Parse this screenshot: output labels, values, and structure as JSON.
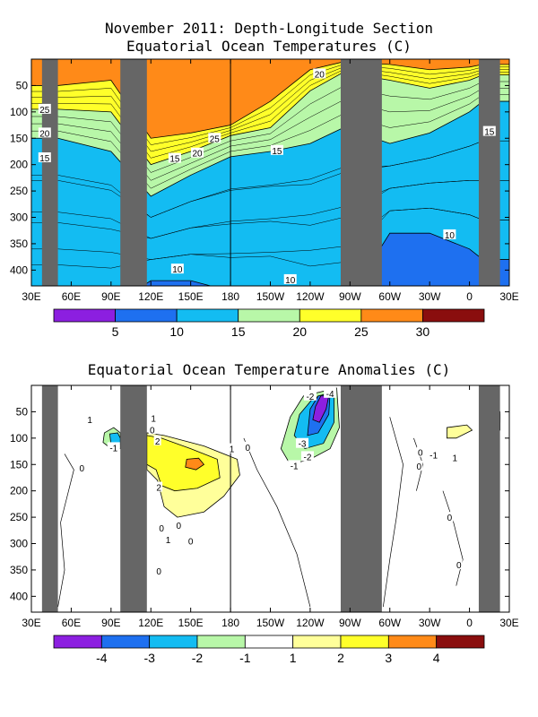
{
  "chart_data": [
    {
      "type": "heatmap",
      "title": "November 2011: Depth-Longitude Section",
      "subtitle": "Equatorial Ocean Temperatures (C)",
      "x_ticks": [
        "30E",
        "60E",
        "90E",
        "120E",
        "150E",
        "180",
        "150W",
        "120W",
        "90W",
        "60W",
        "30W",
        "0",
        "30E"
      ],
      "y_ticks": [
        "50",
        "100",
        "150",
        "200",
        "250",
        "300",
        "350",
        "400"
      ],
      "xlim_lon_east": [
        30,
        390
      ],
      "ylim_depth": [
        0,
        430
      ],
      "land_masks": [
        [
          38,
          50
        ],
        [
          97,
          117
        ],
        [
          263,
          294
        ],
        [
          367,
          383
        ]
      ],
      "colorbar": {
        "labels": [
          "5",
          "10",
          "15",
          "20",
          "25",
          "30"
        ],
        "colors": [
          "#8c1fe0",
          "#1e70f0",
          "#13bcf2",
          "#b8f7a8",
          "#ffff2a",
          "#ff8a18",
          "#8a0e0e"
        ]
      },
      "depth_profiles": [
        {
          "lon": 50,
          "iso25": 50,
          "iso20": 95,
          "iso15": 150,
          "iso10": 470
        },
        {
          "lon": 90,
          "iso25": 40,
          "iso20": 100,
          "iso15": 175,
          "iso10": 470
        },
        {
          "lon": 120,
          "iso25": 150,
          "iso20": 200,
          "iso15": 260,
          "iso10": 420
        },
        {
          "lon": 150,
          "iso25": 140,
          "iso20": 175,
          "iso15": 220,
          "iso10": 420
        },
        {
          "lon": 180,
          "iso25": 125,
          "iso20": 145,
          "iso15": 185,
          "iso10": 440
        },
        {
          "lon": 210,
          "iso25": 80,
          "iso20": 130,
          "iso15": 175,
          "iso10": 440
        },
        {
          "lon": 240,
          "iso25": 20,
          "iso20": 60,
          "iso15": 160,
          "iso10": 470
        },
        {
          "lon": 265,
          "iso25": 5,
          "iso20": 25,
          "iso15": 130,
          "iso10": 470
        },
        {
          "lon": 300,
          "iso25": 10,
          "iso20": 40,
          "iso15": 160,
          "iso10": 330
        },
        {
          "lon": 330,
          "iso25": 20,
          "iso20": 55,
          "iso15": 140,
          "iso10": 330
        },
        {
          "lon": 360,
          "iso25": 15,
          "iso20": 40,
          "iso15": 100,
          "iso10": 360
        },
        {
          "lon": 370,
          "iso25": 10,
          "iso20": 30,
          "iso15": 80,
          "iso10": 380
        }
      ],
      "contour_labels": [
        {
          "text": "25",
          "lon": 40,
          "depth": 95
        },
        {
          "text": "20",
          "lon": 40,
          "depth": 140
        },
        {
          "text": "15",
          "lon": 40,
          "depth": 187
        },
        {
          "text": "25",
          "lon": 168,
          "depth": 150
        },
        {
          "text": "20",
          "lon": 155,
          "depth": 178
        },
        {
          "text": "15",
          "lon": 138,
          "depth": 188
        },
        {
          "text": "15",
          "lon": 215,
          "depth": 173
        },
        {
          "text": "20",
          "lon": 247,
          "depth": 28
        },
        {
          "text": "10",
          "lon": 140,
          "depth": 398
        },
        {
          "text": "10",
          "lon": 225,
          "depth": 418
        },
        {
          "text": "10",
          "lon": 345,
          "depth": 333
        },
        {
          "text": "15",
          "lon": 375,
          "depth": 137
        }
      ]
    },
    {
      "type": "heatmap",
      "title": "Equatorial Ocean Temperature Anomalies (C)",
      "x_ticks": [
        "30E",
        "60E",
        "90E",
        "120E",
        "150E",
        "180",
        "150W",
        "120W",
        "90W",
        "60W",
        "30W",
        "0",
        "30E"
      ],
      "y_ticks": [
        "50",
        "100",
        "150",
        "200",
        "250",
        "300",
        "350",
        "400"
      ],
      "xlim_lon_east": [
        30,
        390
      ],
      "ylim_depth": [
        0,
        430
      ],
      "land_masks": [
        [
          38,
          50
        ],
        [
          97,
          117
        ],
        [
          263,
          294
        ],
        [
          367,
          383
        ]
      ],
      "colorbar": {
        "labels": [
          "-4",
          "-3",
          "-2",
          "-1",
          "1",
          "2",
          "3",
          "4"
        ],
        "colors": [
          "#8c1fe0",
          "#1e70f0",
          "#13bcf2",
          "#b8f7a8",
          "#ffffff",
          "#ffff9a",
          "#ffff2a",
          "#ff8a18",
          "#8a0e0e"
        ]
      },
      "anomaly_regions": [
        {
          "level": -1,
          "points": [
            [
              225,
              60
            ],
            [
              235,
              20
            ],
            [
              260,
              5
            ],
            [
              262,
              80
            ],
            [
              255,
              120
            ],
            [
              240,
              140
            ],
            [
              225,
              150
            ],
            [
              218,
              120
            ]
          ]
        },
        {
          "level": -2,
          "points": [
            [
              232,
              55
            ],
            [
              242,
              25
            ],
            [
              258,
              10
            ],
            [
              258,
              70
            ],
            [
              250,
              110
            ],
            [
              236,
              120
            ],
            [
              228,
              95
            ]
          ]
        },
        {
          "level": -3,
          "points": [
            [
              240,
              45
            ],
            [
              246,
              20
            ],
            [
              255,
              15
            ],
            [
              254,
              55
            ],
            [
              246,
              90
            ],
            [
              238,
              95
            ]
          ]
        },
        {
          "level": -4,
          "points": [
            [
              244,
              40
            ],
            [
              248,
              20
            ],
            [
              254,
              20
            ],
            [
              252,
              45
            ],
            [
              247,
              70
            ],
            [
              242,
              65
            ]
          ]
        },
        {
          "level": -1,
          "points": [
            [
              85,
              90
            ],
            [
              92,
              80
            ],
            [
              97,
              90
            ],
            [
              97,
              120
            ],
            [
              90,
              120
            ],
            [
              84,
              108
            ]
          ]
        },
        {
          "level": -2,
          "points": [
            [
              89,
              92
            ],
            [
              95,
              90
            ],
            [
              97,
              100
            ],
            [
              97,
              112
            ],
            [
              90,
              112
            ]
          ]
        },
        {
          "level": -1,
          "points": [
            [
              370,
              45
            ],
            [
              380,
              40
            ],
            [
              383,
              50
            ],
            [
              383,
              85
            ],
            [
              374,
              85
            ]
          ]
        },
        {
          "level": 1,
          "points": [
            [
              117,
              90
            ],
            [
              130,
              95
            ],
            [
              160,
              115
            ],
            [
              185,
              140
            ],
            [
              187,
              170
            ],
            [
              175,
              210
            ],
            [
              160,
              240
            ],
            [
              140,
              250
            ],
            [
              130,
              230
            ],
            [
              125,
              180
            ],
            [
              117,
              160
            ]
          ]
        },
        {
          "level": 1,
          "points": [
            [
              40,
              40
            ],
            [
              46,
              35
            ],
            [
              49,
              60
            ],
            [
              42,
              60
            ]
          ]
        },
        {
          "level": 1,
          "points": [
            [
              343,
              80
            ],
            [
              358,
              75
            ],
            [
              362,
              85
            ],
            [
              350,
              100
            ],
            [
              343,
              100
            ]
          ]
        },
        {
          "level": 2,
          "points": [
            [
              117,
              95
            ],
            [
              128,
              100
            ],
            [
              150,
              120
            ],
            [
              170,
              140
            ],
            [
              172,
              175
            ],
            [
              155,
              195
            ],
            [
              138,
              200
            ],
            [
              128,
              190
            ],
            [
              124,
              160
            ],
            [
              117,
              150
            ]
          ]
        },
        {
          "level": 2,
          "points": [
            [
              40,
              45
            ],
            [
              45,
              42
            ],
            [
              46,
              55
            ],
            [
              41,
              55
            ]
          ]
        },
        {
          "level": 3,
          "points": [
            [
              147,
              140
            ],
            [
              156,
              138
            ],
            [
              160,
              150
            ],
            [
              154,
              160
            ],
            [
              146,
              155
            ]
          ]
        },
        {
          "level": 2,
          "points": [
            [
              373,
              50
            ],
            [
              380,
              48
            ],
            [
              383,
              55
            ],
            [
              383,
              70
            ],
            [
              376,
              70
            ]
          ]
        },
        {
          "level": 3,
          "points": [
            [
              377,
              52
            ],
            [
              383,
              52
            ],
            [
              383,
              65
            ],
            [
              378,
              65
            ]
          ]
        }
      ],
      "contour_labels": [
        {
          "text": "-4",
          "lon": 255,
          "depth": 15
        },
        {
          "text": "-2",
          "lon": 240,
          "depth": 20
        },
        {
          "text": "-3",
          "lon": 234,
          "depth": 110
        },
        {
          "text": "-2",
          "lon": 238,
          "depth": 135
        },
        {
          "text": "-1",
          "lon": 228,
          "depth": 152
        },
        {
          "text": "-1",
          "lon": 92,
          "depth": 118
        },
        {
          "text": "-1",
          "lon": 333,
          "depth": 132
        },
        {
          "text": "2",
          "lon": 125,
          "depth": 105
        },
        {
          "text": "2",
          "lon": 126,
          "depth": 193
        },
        {
          "text": "1",
          "lon": 181,
          "depth": 120
        },
        {
          "text": "1",
          "lon": 74,
          "depth": 65
        },
        {
          "text": "1",
          "lon": 122,
          "depth": 62
        },
        {
          "text": "0",
          "lon": 193,
          "depth": 117
        },
        {
          "text": "0",
          "lon": 68,
          "depth": 156
        },
        {
          "text": "0",
          "lon": 121,
          "depth": 84
        },
        {
          "text": "0",
          "lon": 141,
          "depth": 265
        },
        {
          "text": "0",
          "lon": 128,
          "depth": 270
        },
        {
          "text": "1",
          "lon": 133,
          "depth": 292
        },
        {
          "text": "0",
          "lon": 150,
          "depth": 295
        },
        {
          "text": "0",
          "lon": 126,
          "depth": 352
        },
        {
          "text": "0",
          "lon": 345,
          "depth": 250
        },
        {
          "text": "0",
          "lon": 352,
          "depth": 340
        },
        {
          "text": "0",
          "lon": 323,
          "depth": 127
        },
        {
          "text": "0",
          "lon": 322,
          "depth": 153
        },
        {
          "text": "1",
          "lon": 349,
          "depth": 137
        }
      ]
    }
  ]
}
